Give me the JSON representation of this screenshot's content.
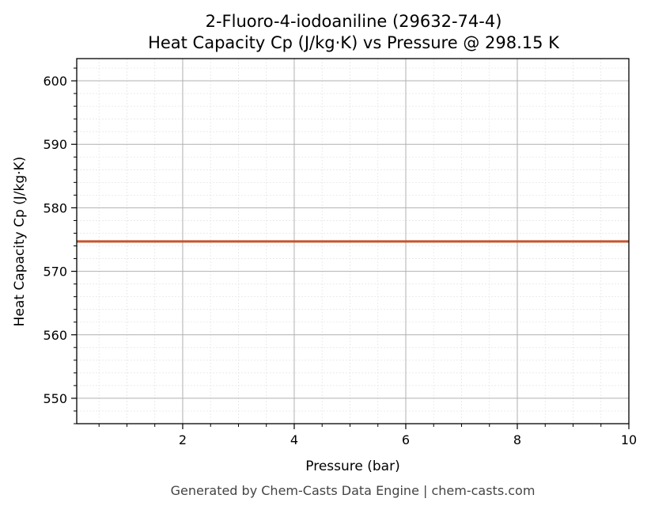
{
  "chart_data": {
    "type": "line",
    "title_line1": "2-Fluoro-4-iodoaniline (29632-74-4)",
    "title_line2": "Heat Capacity Cp (J/kg·K) vs Pressure @ 298.15 K",
    "xlabel": "Pressure (bar)",
    "ylabel": "Heat Capacity Cp (J/kg·K)",
    "xlim": [
      0.1,
      10
    ],
    "ylim": [
      546,
      603.5
    ],
    "x_ticks": [
      2,
      4,
      6,
      8,
      10
    ],
    "y_ticks": [
      550,
      560,
      570,
      580,
      590,
      600
    ],
    "grid": true,
    "minor_grid": true,
    "series": [
      {
        "color": "#c8542c",
        "x": [
          0.1,
          1,
          2,
          3,
          4,
          5,
          6,
          7,
          8,
          9,
          10
        ],
        "y": [
          574.7,
          574.7,
          574.7,
          574.7,
          574.7,
          574.7,
          574.7,
          574.7,
          574.7,
          574.7,
          574.7
        ]
      }
    ]
  },
  "footer": "Generated by Chem-Casts Data Engine | chem-casts.com"
}
